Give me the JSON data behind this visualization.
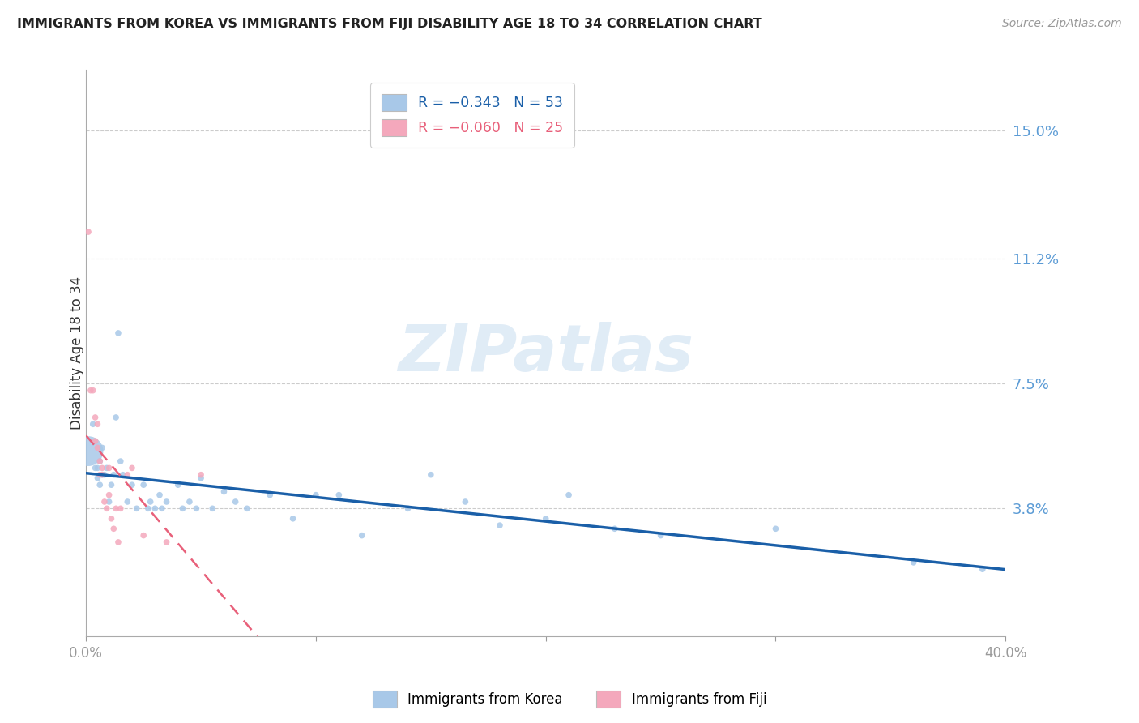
{
  "title": "IMMIGRANTS FROM KOREA VS IMMIGRANTS FROM FIJI DISABILITY AGE 18 TO 34 CORRELATION CHART",
  "source": "Source: ZipAtlas.com",
  "ylabel": "Disability Age 18 to 34",
  "x_min": 0.0,
  "x_max": 0.4,
  "y_min": 0.0,
  "y_max": 0.168,
  "y_ticks": [
    0.038,
    0.075,
    0.112,
    0.15
  ],
  "y_tick_labels": [
    "3.8%",
    "7.5%",
    "11.2%",
    "15.0%"
  ],
  "x_ticks": [
    0.0,
    0.1,
    0.2,
    0.3,
    0.4
  ],
  "x_tick_labels": [
    "0.0%",
    "",
    "",
    "",
    "40.0%"
  ],
  "watermark": "ZIPatlas",
  "korea_color": "#a8c8e8",
  "fiji_color": "#f4a8bc",
  "korea_line_color": "#1a5fa8",
  "fiji_line_color": "#e8607a",
  "korea_N": 53,
  "fiji_N": 25,
  "legend_label_korea": "R = −0.343   N = 53",
  "legend_label_fiji": "R = −0.060   N = 25",
  "bottom_legend_korea": "Immigrants from Korea",
  "bottom_legend_fiji": "Immigrants from Fiji",
  "korea_x": [
    0.001,
    0.003,
    0.004,
    0.005,
    0.005,
    0.006,
    0.006,
    0.007,
    0.007,
    0.008,
    0.009,
    0.01,
    0.011,
    0.012,
    0.013,
    0.014,
    0.015,
    0.016,
    0.018,
    0.02,
    0.022,
    0.025,
    0.027,
    0.028,
    0.03,
    0.032,
    0.033,
    0.035,
    0.04,
    0.042,
    0.045,
    0.048,
    0.05,
    0.055,
    0.06,
    0.065,
    0.07,
    0.08,
    0.09,
    0.1,
    0.11,
    0.12,
    0.14,
    0.15,
    0.165,
    0.18,
    0.2,
    0.21,
    0.23,
    0.25,
    0.3,
    0.36,
    0.39
  ],
  "korea_y": [
    0.055,
    0.063,
    0.05,
    0.047,
    0.05,
    0.052,
    0.045,
    0.048,
    0.056,
    0.048,
    0.05,
    0.04,
    0.045,
    0.048,
    0.065,
    0.09,
    0.052,
    0.048,
    0.04,
    0.045,
    0.038,
    0.045,
    0.038,
    0.04,
    0.038,
    0.042,
    0.038,
    0.04,
    0.045,
    0.038,
    0.04,
    0.038,
    0.047,
    0.038,
    0.043,
    0.04,
    0.038,
    0.042,
    0.035,
    0.042,
    0.042,
    0.03,
    0.038,
    0.048,
    0.04,
    0.033,
    0.035,
    0.042,
    0.032,
    0.03,
    0.032,
    0.022,
    0.02
  ],
  "korea_sizes": [
    700,
    30,
    30,
    30,
    30,
    30,
    30,
    30,
    30,
    30,
    30,
    30,
    30,
    30,
    30,
    30,
    30,
    30,
    30,
    30,
    30,
    30,
    30,
    30,
    30,
    30,
    30,
    30,
    30,
    30,
    30,
    30,
    30,
    30,
    30,
    30,
    30,
    30,
    30,
    30,
    30,
    30,
    30,
    30,
    30,
    30,
    30,
    30,
    30,
    30,
    30,
    30,
    30
  ],
  "fiji_x": [
    0.001,
    0.002,
    0.003,
    0.004,
    0.004,
    0.005,
    0.005,
    0.006,
    0.006,
    0.007,
    0.007,
    0.008,
    0.009,
    0.01,
    0.01,
    0.011,
    0.012,
    0.013,
    0.014,
    0.015,
    0.018,
    0.02,
    0.025,
    0.035,
    0.05
  ],
  "fiji_y": [
    0.12,
    0.073,
    0.073,
    0.065,
    0.058,
    0.063,
    0.056,
    0.052,
    0.048,
    0.05,
    0.048,
    0.04,
    0.038,
    0.042,
    0.05,
    0.035,
    0.032,
    0.038,
    0.028,
    0.038,
    0.048,
    0.05,
    0.03,
    0.028,
    0.048
  ],
  "fiji_sizes": [
    30,
    30,
    30,
    30,
    30,
    30,
    30,
    30,
    30,
    30,
    30,
    30,
    30,
    30,
    30,
    30,
    30,
    30,
    30,
    30,
    30,
    30,
    30,
    30,
    30
  ]
}
